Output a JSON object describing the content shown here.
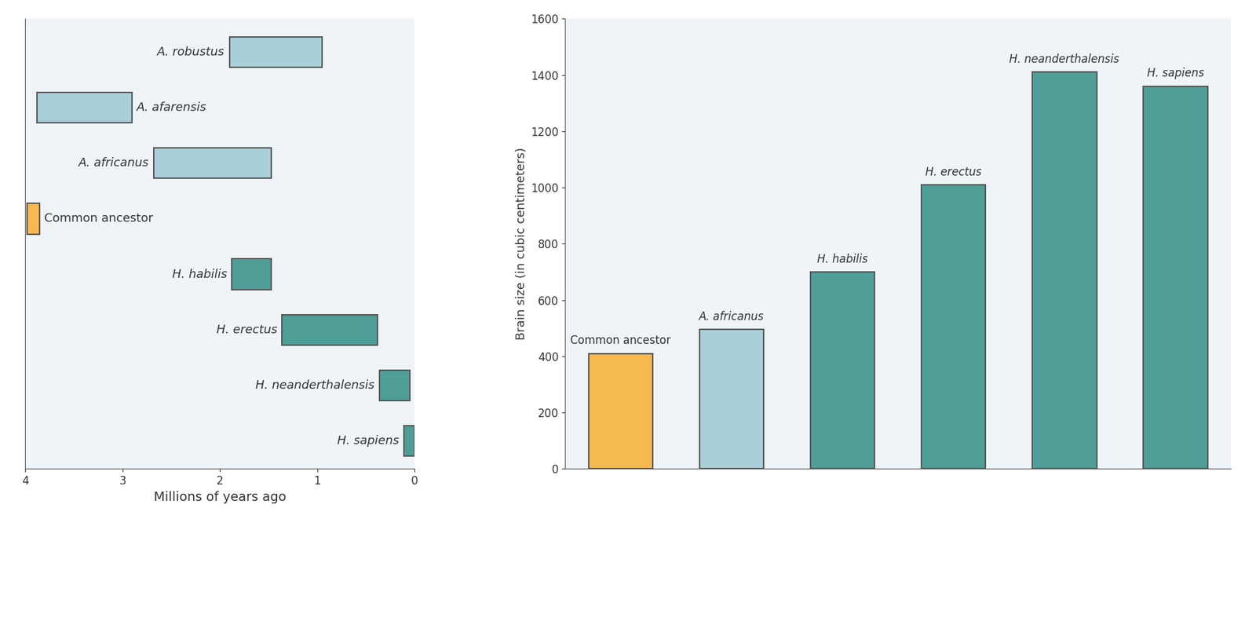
{
  "chart_data": [
    {
      "type": "bar",
      "orientation": "horizontal",
      "xlabel": "Millions of years ago",
      "categories": [
        "A. robustus",
        "A. afarensis",
        "A. africanus",
        "Common ancestor",
        "H. habilis",
        "H. erectus",
        "H. neanderthalensis",
        "H. sapiens"
      ],
      "start": [
        1.9,
        3.88,
        2.68,
        3.98,
        1.88,
        1.36,
        0.36,
        0.11
      ],
      "end": [
        0.95,
        2.9,
        1.47,
        3.85,
        1.47,
        0.38,
        0.05,
        0
      ],
      "colors": [
        "#a9cfd8",
        "#a9cfd8",
        "#a9cfd8",
        "#f5b94f",
        "#4f9e98",
        "#4f9e98",
        "#4f9e98",
        "#4f9e98"
      ],
      "xlim": [
        4,
        0
      ],
      "xticks": [
        4,
        3,
        2,
        1,
        0
      ],
      "tick_labels": "x"
    },
    {
      "type": "bar",
      "ylabel": "Brain size (in cubic centimeters)",
      "categories": [
        "Common ancestor",
        "A. africanus",
        "H. habilis",
        "H. erectus",
        "H. neanderthalensis",
        "H. sapiens"
      ],
      "values": [
        410,
        495,
        700,
        1010,
        1410,
        1360
      ],
      "colors": [
        "#f5b94f",
        "#a9cfd8",
        "#4f9e98",
        "#4f9e98",
        "#4f9e98",
        "#4f9e98"
      ],
      "ylim": [
        0,
        1600
      ],
      "yticks": [
        0,
        200,
        400,
        600,
        800,
        1000,
        1200,
        1400,
        1600
      ],
      "tick_labels": "y"
    }
  ]
}
